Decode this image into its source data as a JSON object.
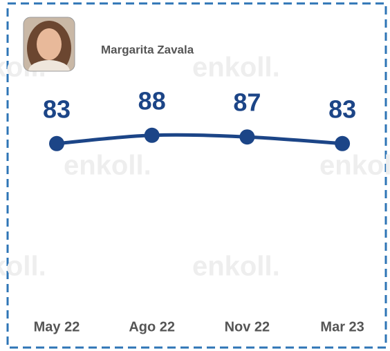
{
  "chart_data": {
    "type": "line",
    "watermark": "enkoll.",
    "categories": [
      "May 22",
      "Ago 22",
      "Nov 22",
      "Mar 23"
    ],
    "series": [
      {
        "name": "Margarita Zavala",
        "color": "#1c4587",
        "values": [
          83,
          88,
          87,
          83
        ]
      }
    ],
    "ylim": [
      0,
      100
    ]
  }
}
